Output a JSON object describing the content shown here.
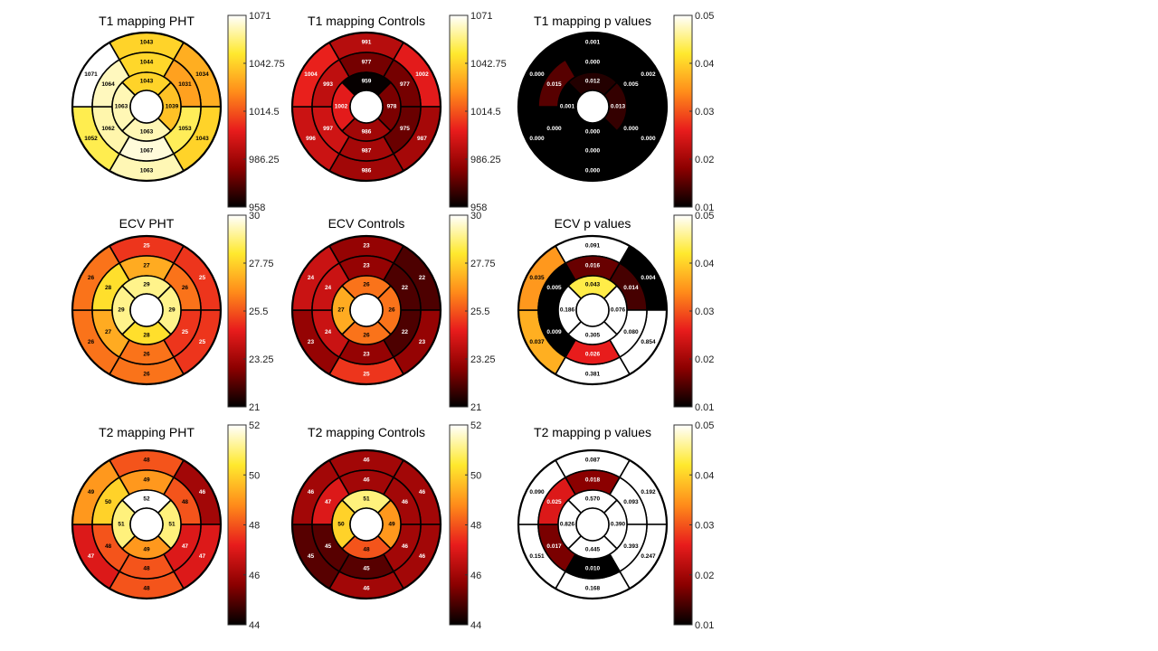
{
  "figure": {
    "colormap_stops": [
      "#000000",
      "#8b0000",
      "#e81c1c",
      "#ff8c1a",
      "#ffe92e",
      "#ffffff"
    ],
    "panels": [
      {
        "id": "t1-pht",
        "title": "T1 mapping PHT",
        "format": "int",
        "colorbar": {
          "min": 958,
          "max": 1071,
          "ticks": [
            "1071",
            "1042.75",
            "1014.5",
            "986.25",
            "958"
          ]
        },
        "values": [
          1043,
          1034,
          1043,
          1063,
          1052,
          1071,
          1044,
          1031,
          1053,
          1067,
          1062,
          1064,
          1043,
          1039,
          1063,
          1063
        ]
      },
      {
        "id": "t1-controls",
        "title": "T1 mapping Controls",
        "format": "int",
        "colorbar": {
          "min": 958,
          "max": 1071,
          "ticks": [
            "1071",
            "1042.75",
            "1014.5",
            "986.25",
            "958"
          ]
        },
        "values": [
          991,
          1002,
          987,
          986,
          996,
          1004,
          977,
          977,
          975,
          987,
          997,
          993,
          959,
          978,
          986,
          1002
        ]
      },
      {
        "id": "t1-p",
        "title": "T1 mapping p values",
        "format": "p",
        "colorbar": {
          "min": 0.01,
          "max": 0.05,
          "ticks": [
            "0.05",
            "0.04",
            "0.03",
            "0.02",
            "0.01"
          ]
        },
        "values": [
          0.001,
          0.002,
          0.0,
          0.0,
          0.0,
          0.0,
          0.0,
          0.005,
          0.0,
          0.0,
          0.0,
          0.015,
          0.012,
          0.013,
          0.0,
          0.001
        ]
      },
      {
        "id": "ecv-pht",
        "title": "ECV PHT",
        "format": "int",
        "colorbar": {
          "min": 21,
          "max": 30,
          "ticks": [
            "30",
            "27.75",
            "25.5",
            "23.25",
            "21"
          ]
        },
        "values": [
          25,
          25,
          25,
          26,
          26,
          26,
          27,
          26,
          25,
          26,
          27,
          28,
          29,
          29,
          28,
          29
        ]
      },
      {
        "id": "ecv-controls",
        "title": "ECV Controls",
        "format": "int",
        "colorbar": {
          "min": 21,
          "max": 30,
          "ticks": [
            "30",
            "27.75",
            "25.5",
            "23.25",
            "21"
          ]
        },
        "values": [
          23,
          22,
          23,
          25,
          23,
          24,
          23,
          22,
          22,
          23,
          24,
          24,
          26,
          26,
          26,
          27
        ]
      },
      {
        "id": "ecv-p",
        "title": "ECV p values",
        "format": "p",
        "colorbar": {
          "min": 0.01,
          "max": 0.05,
          "ticks": [
            "0.05",
            "0.04",
            "0.03",
            "0.02",
            "0.01"
          ]
        },
        "values": [
          0.091,
          0.004,
          0.854,
          0.381,
          0.037,
          0.035,
          0.016,
          0.014,
          0.08,
          0.026,
          0.009,
          0.005,
          0.043,
          0.076,
          0.305,
          0.186
        ]
      },
      {
        "id": "t2-pht",
        "title": "T2 mapping PHT",
        "format": "int",
        "colorbar": {
          "min": 44,
          "max": 52,
          "ticks": [
            "52",
            "50",
            "48",
            "46",
            "44"
          ]
        },
        "values": [
          48,
          46,
          47,
          48,
          47,
          49,
          49,
          48,
          47,
          48,
          48,
          50,
          52,
          51,
          49,
          51
        ]
      },
      {
        "id": "t2-controls",
        "title": "T2 mapping Controls",
        "format": "int",
        "colorbar": {
          "min": 44,
          "max": 52,
          "ticks": [
            "52",
            "50",
            "48",
            "46",
            "44"
          ]
        },
        "values": [
          46,
          46,
          46,
          46,
          45,
          46,
          46,
          46,
          46,
          45,
          45,
          47,
          51,
          49,
          48,
          50
        ]
      },
      {
        "id": "t2-p",
        "title": "T2 mapping p values",
        "format": "p",
        "colorbar": {
          "min": 0.01,
          "max": 0.05,
          "ticks": [
            "0.05",
            "0.04",
            "0.03",
            "0.02",
            "0.01"
          ]
        },
        "values": [
          0.087,
          0.192,
          0.247,
          0.168,
          0.151,
          0.09,
          0.018,
          0.093,
          0.393,
          0.01,
          0.017,
          0.025,
          0.57,
          0.39,
          0.445,
          0.826
        ]
      }
    ]
  },
  "chart_data": [
    {
      "type": "heatmap",
      "title": "T1 mapping PHT",
      "segments": [
        "1",
        "2",
        "3",
        "4",
        "5",
        "6",
        "7",
        "8",
        "9",
        "10",
        "11",
        "12",
        "13",
        "14",
        "15",
        "16"
      ],
      "values": [
        1043,
        1034,
        1043,
        1063,
        1052,
        1071,
        1044,
        1031,
        1053,
        1067,
        1062,
        1064,
        1043,
        1039,
        1063,
        1063
      ],
      "colorbar_range": [
        958,
        1071
      ],
      "colorbar_ticks": [
        1071,
        1042.75,
        1014.5,
        986.25,
        958
      ]
    },
    {
      "type": "heatmap",
      "title": "T1 mapping Controls",
      "segments": [
        "1",
        "2",
        "3",
        "4",
        "5",
        "6",
        "7",
        "8",
        "9",
        "10",
        "11",
        "12",
        "13",
        "14",
        "15",
        "16"
      ],
      "values": [
        991,
        1002,
        987,
        986,
        996,
        1004,
        977,
        977,
        975,
        987,
        997,
        993,
        959,
        978,
        986,
        1002
      ],
      "colorbar_range": [
        958,
        1071
      ],
      "colorbar_ticks": [
        1071,
        1042.75,
        1014.5,
        986.25,
        958
      ]
    },
    {
      "type": "heatmap",
      "title": "T1 mapping p values",
      "segments": [
        "1",
        "2",
        "3",
        "4",
        "5",
        "6",
        "7",
        "8",
        "9",
        "10",
        "11",
        "12",
        "13",
        "14",
        "15",
        "16"
      ],
      "values": [
        0.001,
        0.002,
        0.0,
        0.0,
        0.0,
        0.0,
        0.0,
        0.005,
        0.0,
        0.0,
        0.0,
        0.015,
        0.012,
        0.013,
        0.0,
        0.001
      ],
      "colorbar_range": [
        0.01,
        0.05
      ],
      "colorbar_ticks": [
        0.05,
        0.04,
        0.03,
        0.02,
        0.01
      ]
    },
    {
      "type": "heatmap",
      "title": "ECV PHT",
      "segments": [
        "1",
        "2",
        "3",
        "4",
        "5",
        "6",
        "7",
        "8",
        "9",
        "10",
        "11",
        "12",
        "13",
        "14",
        "15",
        "16"
      ],
      "values": [
        25,
        25,
        25,
        26,
        26,
        26,
        27,
        26,
        25,
        26,
        27,
        28,
        29,
        29,
        28,
        29
      ],
      "colorbar_range": [
        21,
        30
      ],
      "colorbar_ticks": [
        30,
        27.75,
        25.5,
        23.25,
        21
      ]
    },
    {
      "type": "heatmap",
      "title": "ECV Controls",
      "segments": [
        "1",
        "2",
        "3",
        "4",
        "5",
        "6",
        "7",
        "8",
        "9",
        "10",
        "11",
        "12",
        "13",
        "14",
        "15",
        "16"
      ],
      "values": [
        23,
        22,
        23,
        25,
        23,
        24,
        23,
        22,
        22,
        23,
        24,
        24,
        26,
        26,
        26,
        27
      ],
      "colorbar_range": [
        21,
        30
      ],
      "colorbar_ticks": [
        30,
        27.75,
        25.5,
        23.25,
        21
      ]
    },
    {
      "type": "heatmap",
      "title": "ECV p values",
      "segments": [
        "1",
        "2",
        "3",
        "4",
        "5",
        "6",
        "7",
        "8",
        "9",
        "10",
        "11",
        "12",
        "13",
        "14",
        "15",
        "16"
      ],
      "values": [
        0.091,
        0.004,
        0.854,
        0.381,
        0.037,
        0.035,
        0.016,
        0.014,
        0.08,
        0.026,
        0.009,
        0.005,
        0.043,
        0.076,
        0.305,
        0.186
      ],
      "colorbar_range": [
        0.01,
        0.05
      ],
      "colorbar_ticks": [
        0.05,
        0.04,
        0.03,
        0.02,
        0.01
      ]
    },
    {
      "type": "heatmap",
      "title": "T2 mapping PHT",
      "segments": [
        "1",
        "2",
        "3",
        "4",
        "5",
        "6",
        "7",
        "8",
        "9",
        "10",
        "11",
        "12",
        "13",
        "14",
        "15",
        "16"
      ],
      "values": [
        48,
        46,
        47,
        48,
        47,
        49,
        49,
        48,
        47,
        48,
        48,
        50,
        52,
        51,
        49,
        51
      ],
      "colorbar_range": [
        44,
        52
      ],
      "colorbar_ticks": [
        52,
        50,
        48,
        46,
        44
      ]
    },
    {
      "type": "heatmap",
      "title": "T2 mapping Controls",
      "segments": [
        "1",
        "2",
        "3",
        "4",
        "5",
        "6",
        "7",
        "8",
        "9",
        "10",
        "11",
        "12",
        "13",
        "14",
        "15",
        "16"
      ],
      "values": [
        46,
        46,
        46,
        46,
        45,
        46,
        46,
        46,
        46,
        45,
        45,
        47,
        51,
        49,
        48,
        50
      ],
      "colorbar_range": [
        44,
        52
      ],
      "colorbar_ticks": [
        52,
        50,
        48,
        46,
        44
      ]
    },
    {
      "type": "heatmap",
      "title": "T2 mapping p values",
      "segments": [
        "1",
        "2",
        "3",
        "4",
        "5",
        "6",
        "7",
        "8",
        "9",
        "10",
        "11",
        "12",
        "13",
        "14",
        "15",
        "16"
      ],
      "values": [
        0.087,
        0.192,
        0.247,
        0.168,
        0.151,
        0.09,
        0.018,
        0.093,
        0.393,
        0.01,
        0.017,
        0.025,
        0.57,
        0.39,
        0.445,
        0.826
      ],
      "colorbar_range": [
        0.01,
        0.05
      ],
      "colorbar_ticks": [
        0.05,
        0.04,
        0.03,
        0.02,
        0.01
      ]
    }
  ]
}
